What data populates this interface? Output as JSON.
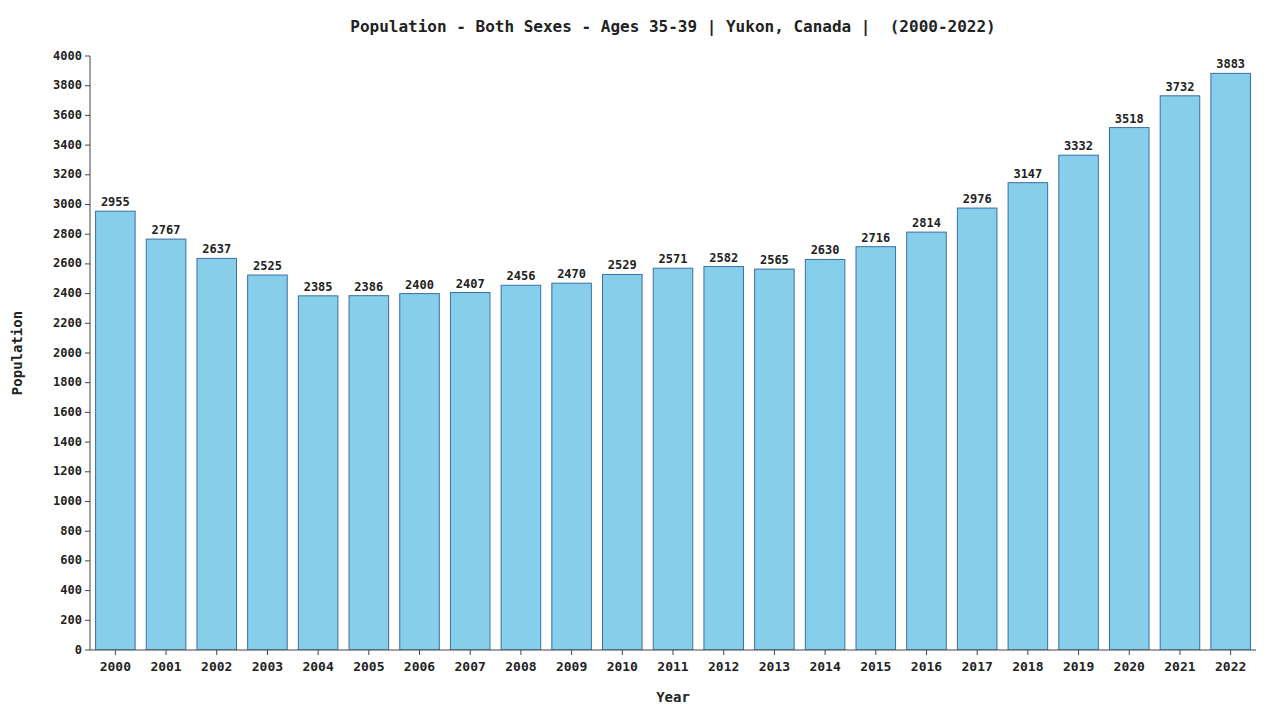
{
  "chart_data": {
    "type": "bar",
    "title": "Population - Both Sexes - Ages 35-39 | Yukon, Canada |  (2000-2022)",
    "xlabel": "Year",
    "ylabel": "Population",
    "categories": [
      "2000",
      "2001",
      "2002",
      "2003",
      "2004",
      "2005",
      "2006",
      "2007",
      "2008",
      "2009",
      "2010",
      "2011",
      "2012",
      "2013",
      "2014",
      "2015",
      "2016",
      "2017",
      "2018",
      "2019",
      "2020",
      "2021",
      "2022"
    ],
    "values": [
      2955,
      2767,
      2637,
      2525,
      2385,
      2386,
      2400,
      2407,
      2456,
      2470,
      2529,
      2571,
      2582,
      2565,
      2630,
      2716,
      2814,
      2976,
      3147,
      3332,
      3518,
      3732,
      3883
    ],
    "color": "#87CEEB",
    "ylim": [
      0,
      4000
    ],
    "yticks": [
      0,
      200,
      400,
      600,
      800,
      1000,
      1200,
      1400,
      1600,
      1800,
      2000,
      2200,
      2400,
      2600,
      2800,
      3000,
      3200,
      3400,
      3600,
      3800,
      4000
    ],
    "grid": false,
    "data_labels": true
  }
}
